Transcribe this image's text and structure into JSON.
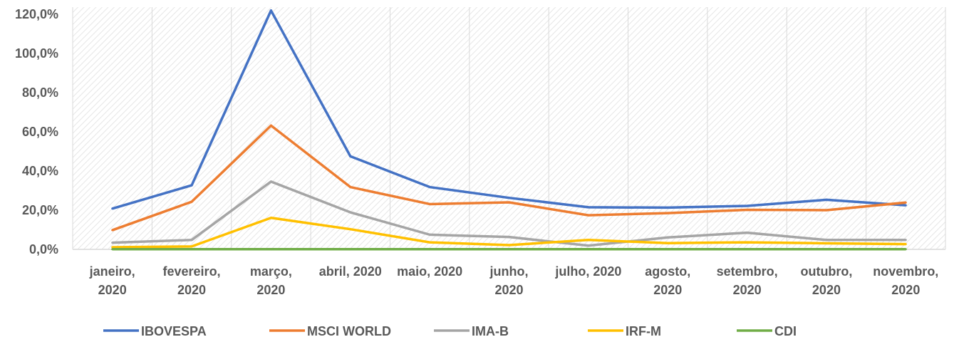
{
  "chart_data": {
    "type": "line",
    "title": "",
    "xlabel": "",
    "ylabel": "",
    "categories": [
      [
        "janeiro,",
        "2020"
      ],
      [
        "fevereiro,",
        "2020"
      ],
      [
        "março,",
        "2020"
      ],
      [
        "abril, 2020"
      ],
      [
        "maio, 2020"
      ],
      [
        "junho,",
        "2020"
      ],
      [
        "julho, 2020"
      ],
      [
        "agosto,",
        "2020"
      ],
      [
        "setembro,",
        "2020"
      ],
      [
        "outubro,",
        "2020"
      ],
      [
        "novembro,",
        "2020"
      ]
    ],
    "ylim": [
      0,
      120
    ],
    "yticks": [
      0,
      20,
      40,
      60,
      80,
      100,
      120
    ],
    "ytick_labels": [
      "0,0%",
      "20,0%",
      "40,0%",
      "60,0%",
      "80,0%",
      "100,0%",
      "120,0%"
    ],
    "grid": "vertical",
    "legend": "bottom",
    "series": [
      {
        "name": "IBOVESPA",
        "color": "#4472C4",
        "values": [
          20.8,
          32.7,
          121.9,
          47.5,
          31.8,
          26.3,
          21.5,
          21.3,
          22.2,
          25.3,
          22.5
        ]
      },
      {
        "name": "MSCI WORLD",
        "color": "#ED7D31",
        "values": [
          9.8,
          24.3,
          63.2,
          31.8,
          23.1,
          24.0,
          17.4,
          18.5,
          20.2,
          20.0,
          23.9
        ]
      },
      {
        "name": "IMA-B",
        "color": "#A5A5A5",
        "values": [
          3.4,
          4.8,
          34.6,
          18.9,
          7.5,
          6.3,
          1.9,
          6.1,
          8.5,
          4.8,
          4.8
        ]
      },
      {
        "name": "IRF-M",
        "color": "#FFC000",
        "values": [
          1.1,
          1.5,
          16.1,
          10.3,
          3.6,
          2.2,
          4.8,
          3.2,
          3.6,
          3.1,
          2.7
        ]
      },
      {
        "name": "CDI",
        "color": "#70AD47",
        "values": [
          0.1,
          0.1,
          0.1,
          0.1,
          0.1,
          0.1,
          0.1,
          0.1,
          0.1,
          0.1,
          0.1
        ]
      }
    ]
  }
}
